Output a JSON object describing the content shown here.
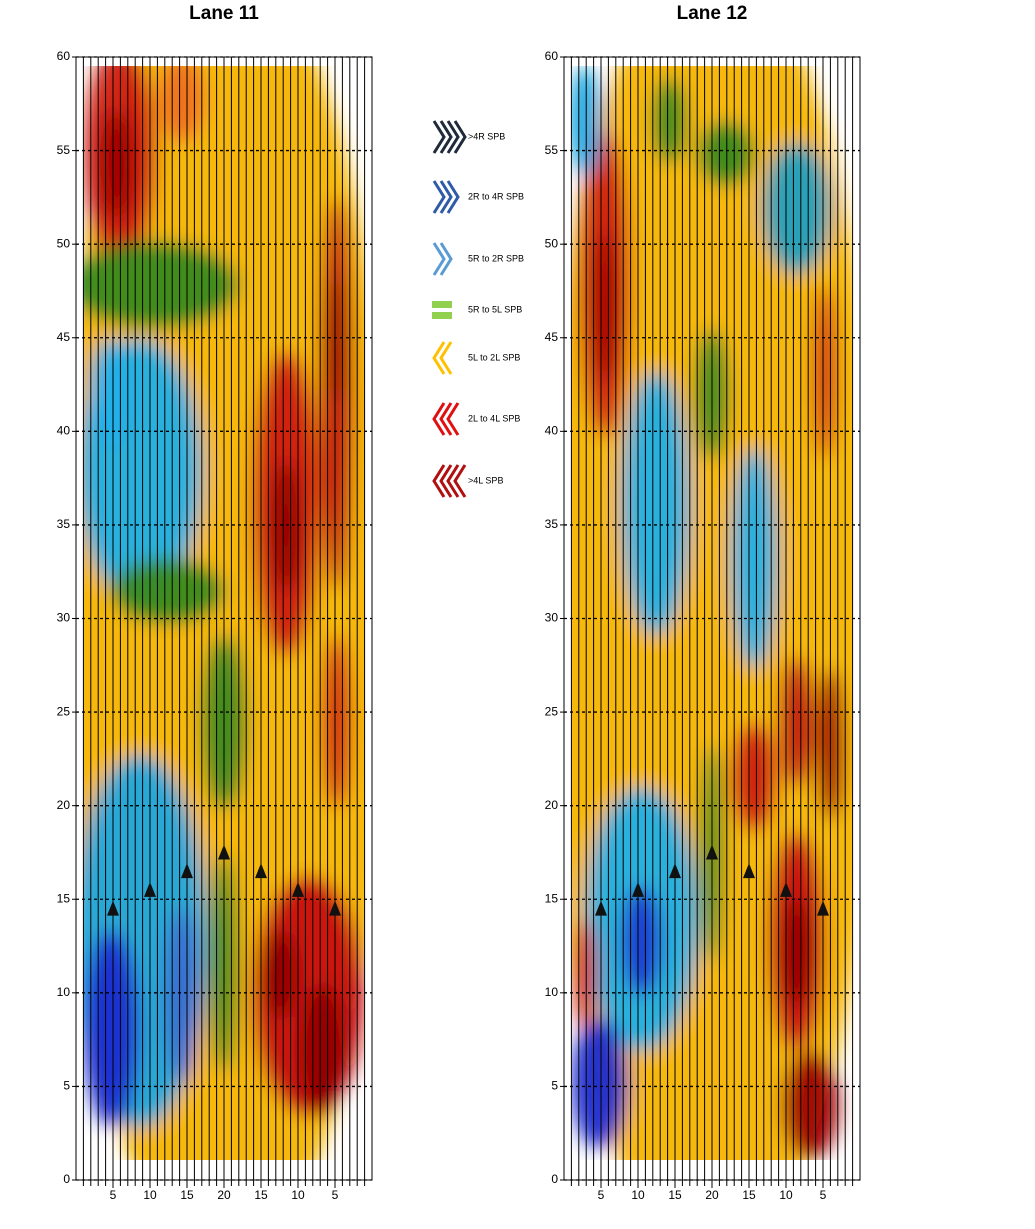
{
  "chart_data": [
    {
      "type": "contour",
      "title": "Lane 11",
      "xlim": [
        0,
        40
      ],
      "xticks": [
        5,
        10,
        15,
        20,
        {
          "value": 25,
          "label": "15"
        },
        {
          "value": 30,
          "label": "10"
        },
        {
          "value": 35,
          "label": "5"
        }
      ],
      "ylim": [
        0,
        60
      ],
      "yticks": [
        0,
        5,
        10,
        15,
        20,
        25,
        30,
        35,
        40,
        45,
        50,
        55,
        60
      ],
      "grid": true,
      "markers": {
        "x": [
          5,
          10,
          15,
          20,
          25,
          30,
          35
        ],
        "y": [
          14.5,
          15.5,
          16.5,
          17.5,
          16.5,
          15.5,
          14.5
        ]
      }
    },
    {
      "type": "contour",
      "title": "Lane 12",
      "xlim": [
        0,
        40
      ],
      "xticks": [
        5,
        10,
        15,
        20,
        {
          "value": 25,
          "label": "15"
        },
        {
          "value": 30,
          "label": "10"
        },
        {
          "value": 35,
          "label": "5"
        }
      ],
      "ylim": [
        0,
        60
      ],
      "yticks": [
        0,
        5,
        10,
        15,
        20,
        25,
        30,
        35,
        40,
        45,
        50,
        55,
        60
      ],
      "grid": true,
      "markers": {
        "x": [
          5,
          10,
          15,
          20,
          25,
          30,
          35
        ],
        "y": [
          14.5,
          15.5,
          16.5,
          17.5,
          16.5,
          15.5,
          14.5
        ]
      }
    }
  ],
  "legend": [
    {
      "label": ">4R SPB",
      "color": "#1f2a3a"
    },
    {
      "label": "2R to 4R SPB",
      "color": "#2e5aa8"
    },
    {
      "label": "5R to 2R SPB",
      "color": "#5b9bd5"
    },
    {
      "label": "5R to 5L SPB",
      "color": "#92d050"
    },
    {
      "label": "5L to 2L SPB",
      "color": "#ffc000"
    },
    {
      "label": "2L to 4L SPB",
      "color": "#e01010"
    },
    {
      "label": ">4L SPB",
      "color": "#b01010"
    }
  ]
}
